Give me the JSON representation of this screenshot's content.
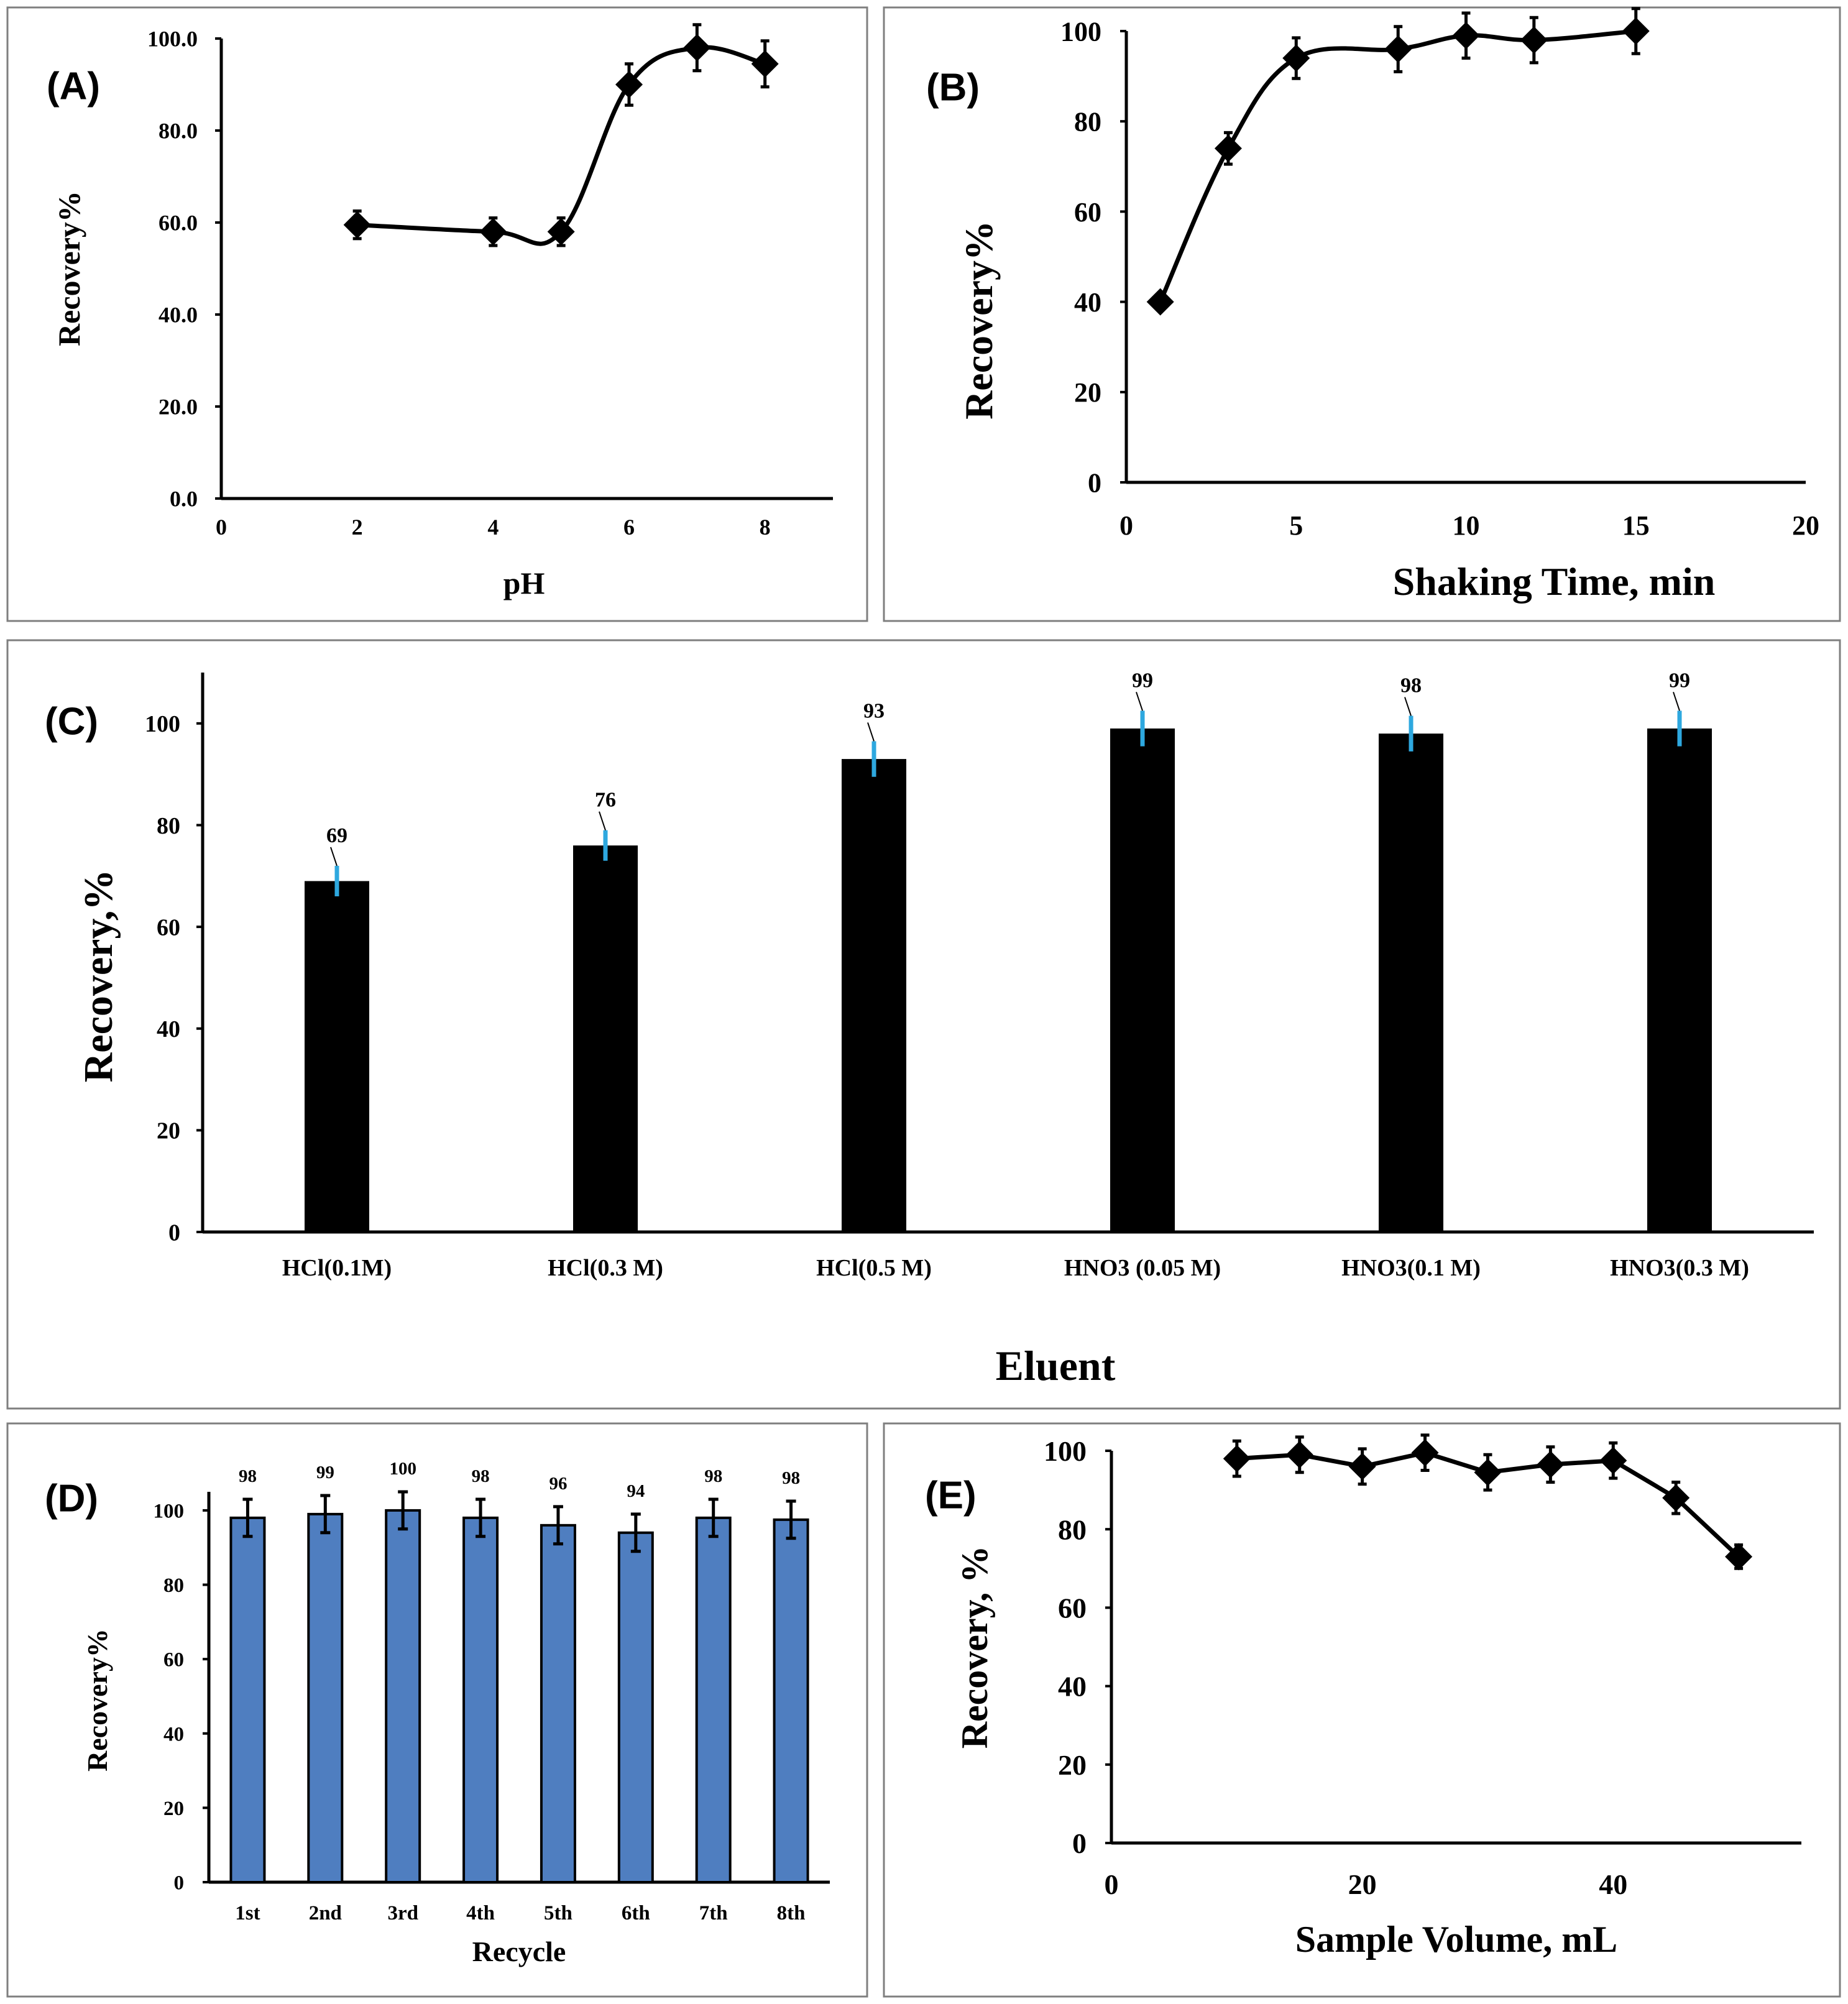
{
  "colors": {
    "marker": "#000000",
    "bar_black": "#000000",
    "bar_blue": "#4f7ec0",
    "error_blue": "#2ea8df",
    "error_black": "#000000"
  },
  "chart_data": [
    {
      "id": "A",
      "tag": "(A)",
      "type": "line",
      "xlabel": "pH",
      "ylabel": "Recovery%",
      "xlim": [
        0,
        9
      ],
      "ylim": [
        0,
        100
      ],
      "xticks": [
        "0",
        "2",
        "4",
        "6",
        "8"
      ],
      "xtick_values": [
        0,
        2,
        4,
        6,
        8
      ],
      "yticks": [
        "0.0",
        "20.0",
        "40.0",
        "60.0",
        "80.0",
        "100.0"
      ],
      "ytick_values": [
        0,
        20,
        40,
        60,
        80,
        100
      ],
      "series": [
        {
          "name": "Recovery",
          "x": [
            2,
            4,
            5,
            6,
            7,
            8
          ],
          "y": [
            59.5,
            58,
            58,
            90,
            98,
            94.5
          ],
          "err": [
            3,
            3,
            3,
            4.5,
            5,
            5
          ]
        }
      ]
    },
    {
      "id": "B",
      "tag": "(B)",
      "type": "line",
      "xlabel": "Shaking Time, min",
      "ylabel": "Recovery%",
      "xlim": [
        0,
        20
      ],
      "ylim": [
        0,
        100
      ],
      "xticks": [
        "0",
        "5",
        "10",
        "15",
        "20"
      ],
      "xtick_values": [
        0,
        5,
        10,
        15,
        20
      ],
      "yticks": [
        "0",
        "20",
        "40",
        "60",
        "80",
        "100"
      ],
      "ytick_values": [
        0,
        20,
        40,
        60,
        80,
        100
      ],
      "series": [
        {
          "name": "Recovery",
          "x": [
            1,
            3,
            5,
            8,
            10,
            12,
            15
          ],
          "y": [
            40,
            74,
            94,
            96,
            99,
            98,
            100
          ],
          "err": [
            0,
            3.5,
            4.5,
            5,
            5,
            5,
            5
          ]
        }
      ]
    },
    {
      "id": "C",
      "tag": "(C)",
      "type": "bar",
      "xlabel": "Eluent",
      "ylabel": "Recovery,%",
      "ylim": [
        0,
        110
      ],
      "yticks": [
        "0",
        "20",
        "40",
        "60",
        "80",
        "100"
      ],
      "ytick_values": [
        0,
        20,
        40,
        60,
        80,
        100
      ],
      "categories": [
        "HCl(0.1M)",
        "HCl(0.3 M)",
        "HCl(0.5 M)",
        "HNO3 (0.05 M)",
        "HNO3(0.1 M)",
        "HNO3(0.3 M)"
      ],
      "values": [
        69,
        76,
        93,
        99,
        98,
        99
      ],
      "data_labels": [
        "69",
        "76",
        "93",
        "99",
        "98",
        "99"
      ],
      "err": [
        3,
        3,
        3.5,
        3.5,
        3.5,
        3.5
      ]
    },
    {
      "id": "D",
      "tag": "(D)",
      "type": "bar",
      "xlabel": "Recycle",
      "ylabel": "Recovery%",
      "ylim": [
        0,
        105
      ],
      "yticks": [
        "0",
        "20",
        "40",
        "60",
        "80",
        "100"
      ],
      "ytick_values": [
        0,
        20,
        40,
        60,
        80,
        100
      ],
      "categories": [
        "1st",
        "2nd",
        "3rd",
        "4th",
        "5th",
        "6th",
        "7th",
        "8th"
      ],
      "values": [
        98,
        99,
        100,
        98,
        96,
        94,
        98,
        97.5
      ],
      "data_labels": [
        "98",
        "99",
        "100",
        "98",
        "96",
        "94",
        "98",
        "98"
      ],
      "err": [
        5,
        5,
        5,
        5,
        5,
        5,
        5,
        5
      ]
    },
    {
      "id": "E",
      "tag": "(E)",
      "type": "line",
      "xlabel": "Sample Volume, mL",
      "ylabel": "Recovery, %",
      "xlim": [
        0,
        55
      ],
      "ylim": [
        0,
        100
      ],
      "xticks": [
        "0",
        "20",
        "40"
      ],
      "xtick_values": [
        0,
        20,
        40
      ],
      "yticks": [
        "0",
        "20",
        "40",
        "60",
        "80",
        "100"
      ],
      "ytick_values": [
        0,
        20,
        40,
        60,
        80,
        100
      ],
      "series": [
        {
          "name": "Recovery",
          "x": [
            10,
            15,
            20,
            25,
            30,
            35,
            40,
            45,
            50
          ],
          "y": [
            98,
            99,
            96,
            99.5,
            94.5,
            96.5,
            97.5,
            88,
            73
          ],
          "err": [
            4.5,
            4.5,
            4.5,
            4.5,
            4.5,
            4.5,
            4.5,
            4,
            3
          ]
        }
      ]
    }
  ]
}
